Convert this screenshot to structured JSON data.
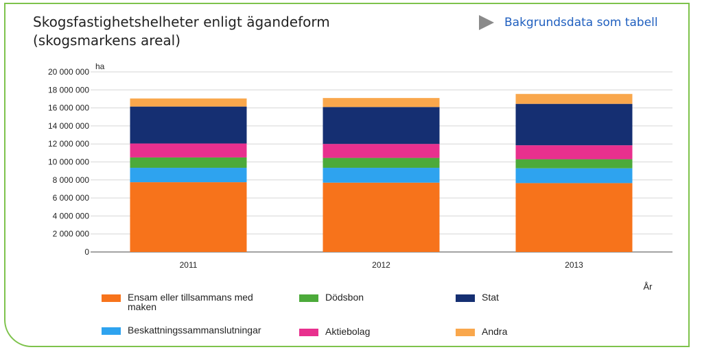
{
  "title_line1": "Skogsfastighetshelheter enligt ägandeform",
  "title_line2": "(skogsmarkens areal)",
  "table_link": {
    "label": "Bakgrundsdata som tabell",
    "icon": "play-triangle-icon"
  },
  "chart_data": {
    "type": "bar",
    "stacked": true,
    "categories": [
      "2011",
      "2012",
      "2013"
    ],
    "ylabel": "ha",
    "xlabel": "År",
    "ylim": [
      0,
      20000000
    ],
    "yticks": [
      0,
      2000000,
      4000000,
      6000000,
      8000000,
      10000000,
      12000000,
      14000000,
      16000000,
      18000000,
      20000000
    ],
    "ytick_labels": [
      "0",
      "2 000 000",
      "4 000 000",
      "6 000 000",
      "8 000 000",
      "10 000 000",
      "12 000 000",
      "14 000 000",
      "16 000 000",
      "18 000 000",
      "20 000 000"
    ],
    "grid": true,
    "legend_position": "bottom",
    "series": [
      {
        "name": "Ensam eller tillsammans med maken",
        "color": "#f7731b",
        "values": [
          7750000,
          7700000,
          7650000
        ]
      },
      {
        "name": "Beskattningssammanslutningar",
        "color": "#2ea3ef",
        "values": [
          1600000,
          1650000,
          1650000
        ]
      },
      {
        "name": "Dödsbon",
        "color": "#4caa3a",
        "values": [
          1150000,
          1100000,
          1000000
        ]
      },
      {
        "name": "Aktiebolag",
        "color": "#e8308e",
        "values": [
          1550000,
          1550000,
          1550000
        ]
      },
      {
        "name": "Stat",
        "color": "#152f72",
        "values": [
          4100000,
          4100000,
          4600000
        ]
      },
      {
        "name": "Andra",
        "color": "#f9a74c",
        "values": [
          900000,
          1000000,
          1100000
        ]
      }
    ]
  }
}
